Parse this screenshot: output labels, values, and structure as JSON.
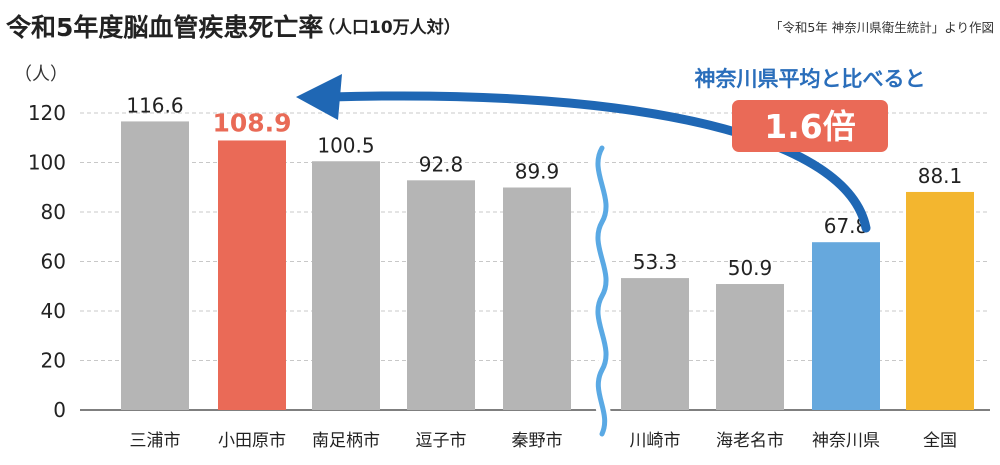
{
  "title": "令和5年度脳血管疾患死亡率",
  "title_suffix": "（人口10万人対）",
  "source": "「令和5年 神奈川県衛生統計」より作図",
  "colors": {
    "default": "#b5b5b5",
    "highlight": "#ea6a57",
    "prefecture": "#66a8dd",
    "national": "#f3b62f",
    "arrow": "#1f67b4",
    "break_line": "#5aa9e4",
    "grid": "#c8c8c8"
  },
  "chart_data": {
    "type": "bar",
    "ylabel": "（人）",
    "xlabel": "",
    "ylim": [
      0,
      120
    ],
    "yticks": [
      0,
      20,
      40,
      60,
      80,
      100,
      120
    ],
    "grid": true,
    "axis_break_after_index": 4,
    "categories": [
      "三浦市",
      "小田原市",
      "南足柄市",
      "逗子市",
      "秦野市",
      "川崎市",
      "海老名市",
      "神奈川県",
      "全国"
    ],
    "values": [
      116.6,
      108.9,
      100.5,
      92.8,
      89.9,
      53.3,
      50.9,
      67.8,
      88.1
    ],
    "value_labels": [
      "116.6",
      "108.9",
      "100.5",
      "92.8",
      "89.9",
      "53.3",
      "50.9",
      "67.8",
      "88.1"
    ],
    "bar_color_keys": [
      "default",
      "highlight",
      "default",
      "default",
      "default",
      "default",
      "default",
      "prefecture",
      "national"
    ],
    "highlight_index": 1,
    "annotation": {
      "text": "神奈川県平均と比べると",
      "ratio": "1.6倍",
      "from_category": "神奈川県",
      "to_category": "小田原市"
    }
  }
}
